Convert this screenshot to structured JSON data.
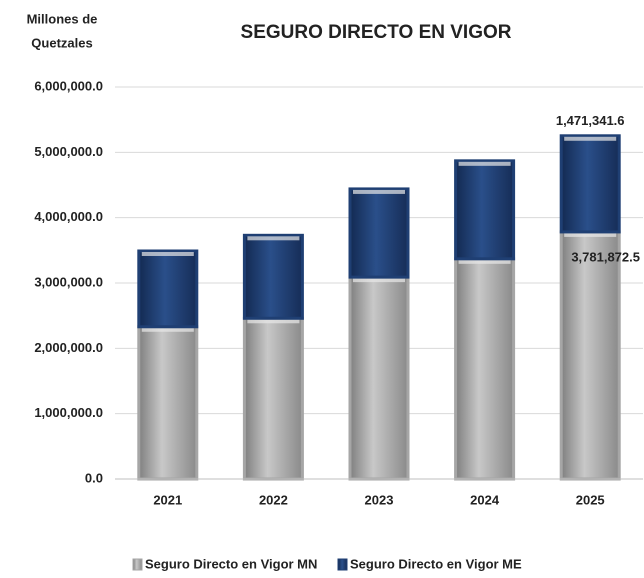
{
  "chart_data": {
    "type": "stacked_bar",
    "title": "SEGURO DIRECTO EN VIGOR",
    "y_label": [
      "Millones de",
      "Quetzales"
    ],
    "categories": [
      "2021",
      "2022",
      "2023",
      "2024",
      "2025"
    ],
    "series": [
      {
        "name": "Seguro Directo en Vigor MN",
        "color": "#a6a6a6",
        "values": [
          2330000,
          2460000,
          3090000,
          3370000,
          3781872.5
        ],
        "value_labels": [
          null,
          null,
          null,
          null,
          "3,781,872.5"
        ]
      },
      {
        "name": "Seguro Directo en Vigor ME",
        "color": "#1f3f73",
        "values": [
          1160000,
          1270000,
          1350000,
          1500000,
          1471341.6
        ],
        "value_labels": [
          null,
          null,
          null,
          null,
          "1,471,341.6"
        ]
      }
    ],
    "ylim": [
      0,
      6000000
    ],
    "yticks": [
      {
        "value": 0,
        "label": "0.0"
      },
      {
        "value": 1000000,
        "label": "1,000,000.0"
      },
      {
        "value": 2000000,
        "label": "2,000,000.0"
      },
      {
        "value": 3000000,
        "label": "3,000,000.0"
      },
      {
        "value": 4000000,
        "label": "4,000,000.0"
      },
      {
        "value": 5000000,
        "label": "5,000,000.0"
      },
      {
        "value": 6000000,
        "label": "6,000,000.0"
      }
    ],
    "grid": true,
    "legend": "bottom"
  }
}
